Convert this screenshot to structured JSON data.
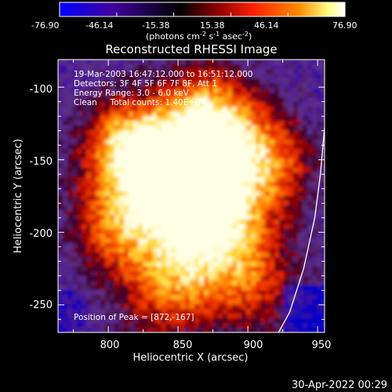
{
  "colorbar": {
    "tick_labels": [
      "-76.90",
      "-46.14",
      "-15.38",
      "15.38",
      "46.14",
      "76.90"
    ],
    "unit_label_main": "(photons cm",
    "unit_sup1": "-2",
    "unit_mid": " s",
    "unit_sup2": "-1",
    "unit_mid2": " asec",
    "unit_sup3": "-2",
    "unit_end": ")",
    "range": [
      -76.9,
      76.9
    ],
    "colors": [
      "#0000ff",
      "#4000a0",
      "#000000",
      "#8a0000",
      "#ff2000",
      "#ff8c00",
      "#ffff80",
      "#ffffff"
    ]
  },
  "chart_data": {
    "type": "heatmap",
    "title": "Reconstructed RHESSI Image",
    "xlabel": "Heliocentric X (arcsec)",
    "ylabel": "Heliocentric Y (arcsec)",
    "xlim": [
      764,
      955
    ],
    "ylim": [
      -269,
      -81
    ],
    "x_ticks": [
      800,
      850,
      900,
      950
    ],
    "y_ticks": [
      -100,
      -150,
      -200,
      -250
    ],
    "annotations": {
      "time": "19-Mar-2003 16:47:12.000 to 16:51:12.000",
      "detectors": "Detectors: 3F 4F 5F 6F 7F 8F, Att 1",
      "energy": "Energy Range: 3.0 - 6.0 keV",
      "method": "Clean     Total counts: 1.40E+04",
      "peak": "Position of Peak = [872,-167]"
    },
    "peak": [
      872,
      -167
    ],
    "limb_curve": [
      [
        922,
        -269
      ],
      [
        930,
        -255
      ],
      [
        940,
        -225
      ],
      [
        948,
        -190
      ],
      [
        952,
        -160
      ],
      [
        955,
        -128
      ]
    ]
  },
  "footer": {
    "timestamp": "30-Apr-2022 00:29"
  }
}
